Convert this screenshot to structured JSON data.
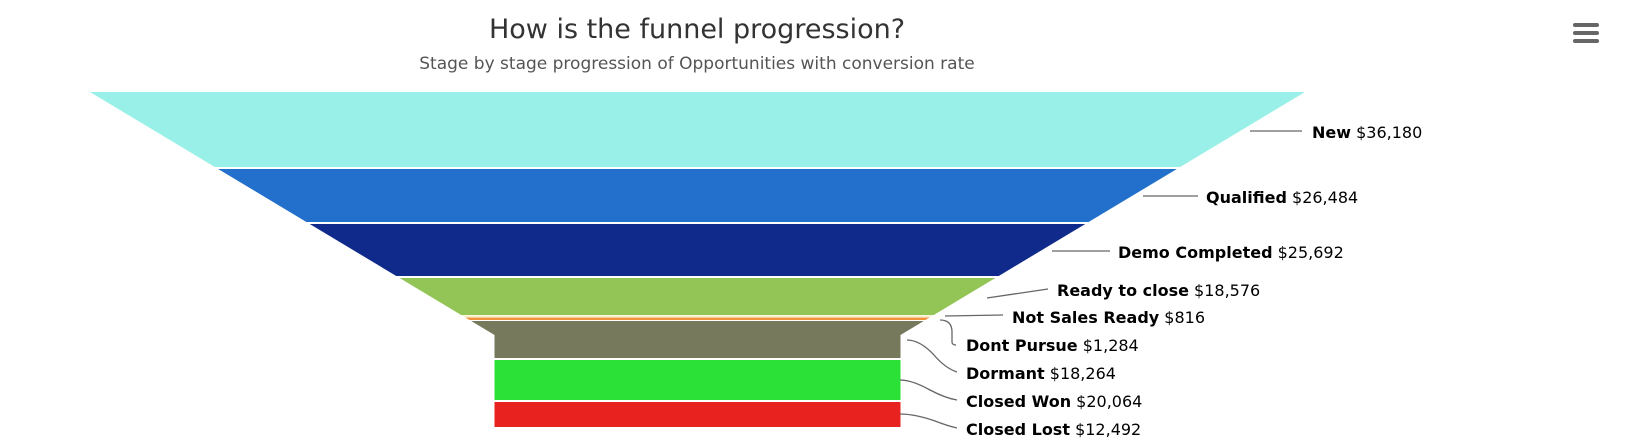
{
  "chart_data": {
    "type": "funnel",
    "title": "How is the funnel progression?",
    "subtitle": "Stage by stage progression of Opportunities with conversion rate",
    "categories": [
      "New",
      "Qualified",
      "Demo Completed",
      "Ready to close",
      "Not Sales Ready",
      "Dont Pursue",
      "Dormant",
      "Closed Won",
      "Closed Lost"
    ],
    "values": [
      36180,
      26484,
      25692,
      18576,
      816,
      1284,
      18264,
      20064,
      12492
    ],
    "value_labels": [
      "$36,180",
      "$26,484",
      "$25,692",
      "$18,576",
      "$816",
      "$1,284",
      "$18,264",
      "$20,064",
      "$12,492"
    ],
    "colors": [
      "#99f0e8",
      "#2270cb",
      "#0f2a8a",
      "#93c556",
      "#f6f0c4",
      "#f0923a",
      "#77795c",
      "#2be036",
      "#e8221e"
    ],
    "legend": "none",
    "grid": false,
    "data_labels_position": "right"
  },
  "menu": {
    "icon": "hamburger-menu-icon"
  }
}
